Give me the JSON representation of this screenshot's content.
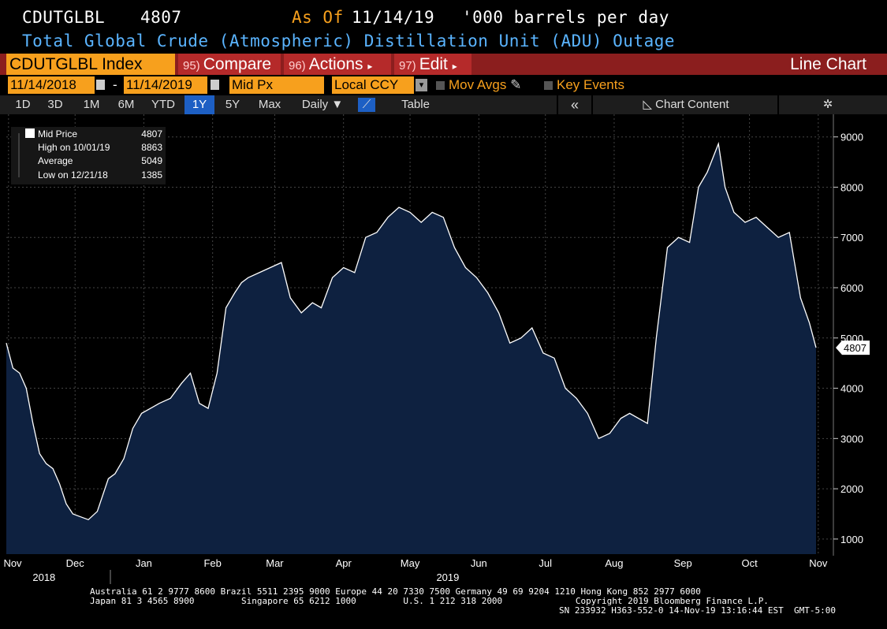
{
  "header": {
    "ticker": "CDUTGLBL",
    "last_value": "4807",
    "as_of_label": "As Of",
    "as_of_date": "11/14/19",
    "units": "'000 barrels per day",
    "description": "Total Global Crude (Atmospheric) Distillation Unit (ADU) Outage"
  },
  "toolbar": {
    "security": "CDUTGLBL Index",
    "compare_num": "95)",
    "compare_label": "Compare",
    "actions_num": "96)",
    "actions_label": "Actions",
    "edit_num": "97)",
    "edit_label": "Edit",
    "chart_type": "Line Chart",
    "start_date": "11/14/2018",
    "end_date": "11/14/2019",
    "field": "Mid Px",
    "currency": "Local CCY",
    "mov_avgs": "Mov Avgs",
    "key_events": "Key Events",
    "periods": [
      "1D",
      "3D",
      "1M",
      "6M",
      "YTD",
      "1Y",
      "5Y",
      "Max"
    ],
    "active_period": "1Y",
    "frequency": "Daily",
    "table_label": "Table",
    "collapse": "«",
    "chart_content": "Chart Content"
  },
  "legend": {
    "rows": [
      {
        "label": "Mid Price",
        "value": "4807"
      },
      {
        "label": "High on 10/01/19",
        "value": "8863"
      },
      {
        "label": "Average",
        "value": "5049"
      },
      {
        "label": "Low on 12/21/18",
        "value": "1385"
      }
    ]
  },
  "chart_data": {
    "type": "area",
    "title": "Total Global Crude (Atmospheric) Distillation Unit (ADU) Outage",
    "ylabel": "'000 barrels per day",
    "ylim": [
      700,
      9450
    ],
    "yticks": [
      1000,
      2000,
      3000,
      4000,
      5000,
      6000,
      7000,
      8000,
      9000
    ],
    "xlim": [
      "2018-11-14",
      "2019-11-14"
    ],
    "month_ticks": [
      {
        "label": "Nov",
        "date": "2018-11-15"
      },
      {
        "label": "Dec",
        "date": "2018-12-15"
      },
      {
        "label": "Jan",
        "date": "2019-01-15"
      },
      {
        "label": "Feb",
        "date": "2019-02-15"
      },
      {
        "label": "Mar",
        "date": "2019-03-15"
      },
      {
        "label": "Apr",
        "date": "2019-04-15"
      },
      {
        "label": "May",
        "date": "2019-05-15"
      },
      {
        "label": "Jun",
        "date": "2019-06-15"
      },
      {
        "label": "Jul",
        "date": "2019-07-15"
      },
      {
        "label": "Aug",
        "date": "2019-08-15"
      },
      {
        "label": "Sep",
        "date": "2019-09-15"
      },
      {
        "label": "Oct",
        "date": "2019-10-15"
      },
      {
        "label": "Nov",
        "date": "2019-11-15"
      }
    ],
    "year_labels": [
      {
        "label": "2018",
        "date": "2018-12-01"
      },
      {
        "label": "2019",
        "date": "2019-06-01"
      }
    ],
    "last_value_label": "4807",
    "x": [
      "2018-11-14",
      "2018-11-17",
      "2018-11-20",
      "2018-11-23",
      "2018-11-26",
      "2018-11-29",
      "2018-12-02",
      "2018-12-05",
      "2018-12-08",
      "2018-12-11",
      "2018-12-14",
      "2018-12-17",
      "2018-12-21",
      "2018-12-25",
      "2018-12-30",
      "2019-01-02",
      "2019-01-06",
      "2019-01-10",
      "2019-01-14",
      "2019-01-18",
      "2019-01-22",
      "2019-01-27",
      "2019-02-01",
      "2019-02-05",
      "2019-02-09",
      "2019-02-13",
      "2019-02-17",
      "2019-02-21",
      "2019-02-25",
      "2019-02-28",
      "2019-03-03",
      "2019-03-08",
      "2019-03-13",
      "2019-03-18",
      "2019-03-22",
      "2019-03-27",
      "2019-04-01",
      "2019-04-05",
      "2019-04-10",
      "2019-04-15",
      "2019-04-20",
      "2019-04-25",
      "2019-04-30",
      "2019-05-05",
      "2019-05-10",
      "2019-05-15",
      "2019-05-20",
      "2019-05-25",
      "2019-05-30",
      "2019-06-04",
      "2019-06-09",
      "2019-06-14",
      "2019-06-19",
      "2019-06-24",
      "2019-06-29",
      "2019-07-04",
      "2019-07-09",
      "2019-07-14",
      "2019-07-19",
      "2019-07-24",
      "2019-07-29",
      "2019-08-03",
      "2019-08-08",
      "2019-08-13",
      "2019-08-18",
      "2019-08-22",
      "2019-08-26",
      "2019-08-30",
      "2019-09-03",
      "2019-09-08",
      "2019-09-13",
      "2019-09-18",
      "2019-09-22",
      "2019-09-26",
      "2019-10-01",
      "2019-10-04",
      "2019-10-08",
      "2019-10-13",
      "2019-10-18",
      "2019-10-23",
      "2019-10-28",
      "2019-11-02",
      "2019-11-07",
      "2019-11-11",
      "2019-11-14"
    ],
    "y": [
      4900,
      4400,
      4300,
      4000,
      3300,
      2700,
      2500,
      2400,
      2100,
      1700,
      1500,
      1450,
      1385,
      1550,
      2200,
      2300,
      2600,
      3200,
      3500,
      3600,
      3700,
      3800,
      4100,
      4300,
      3700,
      3600,
      4300,
      5600,
      5900,
      6100,
      6200,
      6300,
      6400,
      6500,
      5800,
      5500,
      5700,
      5600,
      6200,
      6400,
      6300,
      7000,
      7100,
      7400,
      7600,
      7500,
      7300,
      7500,
      7400,
      6800,
      6400,
      6200,
      5900,
      5500,
      4900,
      5000,
      5200,
      4700,
      4600,
      4000,
      3800,
      3500,
      3000,
      3100,
      3400,
      3500,
      3400,
      3300,
      5000,
      6800,
      7000,
      6900,
      8000,
      8300,
      8863,
      8000,
      7500,
      7300,
      7400,
      7200,
      7000,
      7100,
      5800,
      5300,
      4807
    ]
  },
  "footer": {
    "line1": "Australia 61 2 9777 8600 Brazil 5511 2395 9000 Europe 44 20 7330 7500 Germany 49 69 9204 1210 Hong Kong 852 2977 6000",
    "line2": "Japan 81 3 4565 8900         Singapore 65 6212 1000         U.S. 1 212 318 2000              Copyright 2019 Bloomberg Finance L.P.",
    "line3": "SN 233932 H363-552-0 14-Nov-19 13:16:44 EST  GMT-5:00"
  },
  "colors": {
    "area_fill": "#0e2140",
    "line": "#ffffff",
    "orange": "#f7a01d",
    "red_bar": "#8b1e1e",
    "blue_text": "#5ab4ff"
  }
}
